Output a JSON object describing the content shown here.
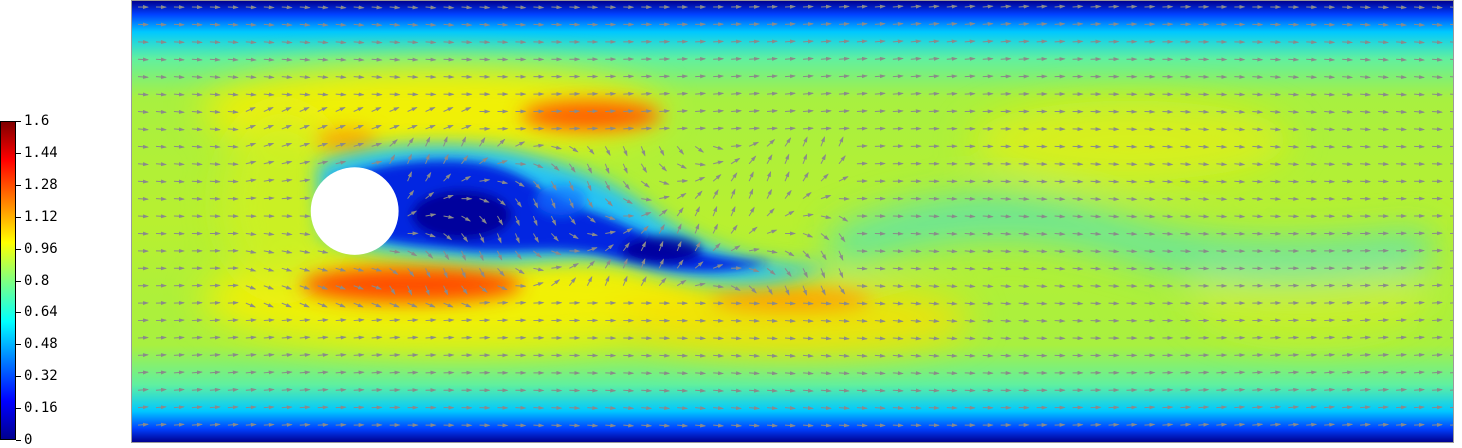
{
  "chart_data": {
    "type": "heatmap",
    "title": "",
    "xlabel": "",
    "ylabel": "",
    "colorbar": {
      "min": 0,
      "max": 1.6,
      "ticks": [
        "1.6",
        "1.44",
        "1.28",
        "1.12",
        "0.96",
        "0.8",
        "0.64",
        "0.48",
        "0.32",
        "0.16",
        "0"
      ],
      "colormap": "jet"
    },
    "field": "velocity magnitude",
    "overlay": "velocity vectors (gray arrows)",
    "obstacle": "circular cylinder (white)"
  }
}
